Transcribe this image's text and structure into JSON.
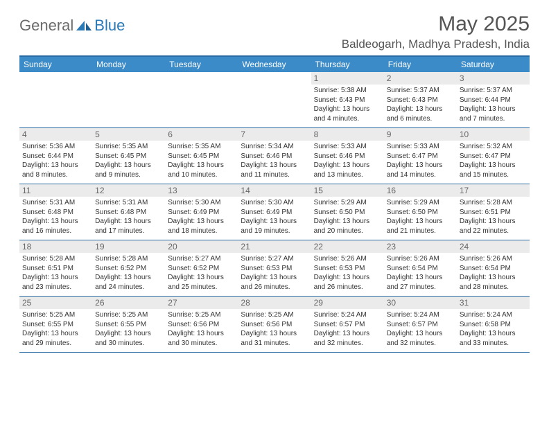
{
  "logo": {
    "general": "General",
    "blue": "Blue"
  },
  "title": "May 2025",
  "location": "Baldeogarh, Madhya Pradesh, India",
  "colors": {
    "header_bar": "#3b8bc9",
    "header_border": "#2a6aa3",
    "daynum_bg": "#ebebeb",
    "text": "#333333",
    "logo_gray": "#6b6b6b",
    "logo_blue": "#2a7ab8"
  },
  "weekdays": [
    "Sunday",
    "Monday",
    "Tuesday",
    "Wednesday",
    "Thursday",
    "Friday",
    "Saturday"
  ],
  "weeks": [
    [
      {
        "day": "",
        "sunrise": "",
        "sunset": "",
        "daylight": ""
      },
      {
        "day": "",
        "sunrise": "",
        "sunset": "",
        "daylight": ""
      },
      {
        "day": "",
        "sunrise": "",
        "sunset": "",
        "daylight": ""
      },
      {
        "day": "",
        "sunrise": "",
        "sunset": "",
        "daylight": ""
      },
      {
        "day": "1",
        "sunrise": "5:38 AM",
        "sunset": "6:43 PM",
        "daylight": "13 hours and 4 minutes."
      },
      {
        "day": "2",
        "sunrise": "5:37 AM",
        "sunset": "6:43 PM",
        "daylight": "13 hours and 6 minutes."
      },
      {
        "day": "3",
        "sunrise": "5:37 AM",
        "sunset": "6:44 PM",
        "daylight": "13 hours and 7 minutes."
      }
    ],
    [
      {
        "day": "4",
        "sunrise": "5:36 AM",
        "sunset": "6:44 PM",
        "daylight": "13 hours and 8 minutes."
      },
      {
        "day": "5",
        "sunrise": "5:35 AM",
        "sunset": "6:45 PM",
        "daylight": "13 hours and 9 minutes."
      },
      {
        "day": "6",
        "sunrise": "5:35 AM",
        "sunset": "6:45 PM",
        "daylight": "13 hours and 10 minutes."
      },
      {
        "day": "7",
        "sunrise": "5:34 AM",
        "sunset": "6:46 PM",
        "daylight": "13 hours and 11 minutes."
      },
      {
        "day": "8",
        "sunrise": "5:33 AM",
        "sunset": "6:46 PM",
        "daylight": "13 hours and 13 minutes."
      },
      {
        "day": "9",
        "sunrise": "5:33 AM",
        "sunset": "6:47 PM",
        "daylight": "13 hours and 14 minutes."
      },
      {
        "day": "10",
        "sunrise": "5:32 AM",
        "sunset": "6:47 PM",
        "daylight": "13 hours and 15 minutes."
      }
    ],
    [
      {
        "day": "11",
        "sunrise": "5:31 AM",
        "sunset": "6:48 PM",
        "daylight": "13 hours and 16 minutes."
      },
      {
        "day": "12",
        "sunrise": "5:31 AM",
        "sunset": "6:48 PM",
        "daylight": "13 hours and 17 minutes."
      },
      {
        "day": "13",
        "sunrise": "5:30 AM",
        "sunset": "6:49 PM",
        "daylight": "13 hours and 18 minutes."
      },
      {
        "day": "14",
        "sunrise": "5:30 AM",
        "sunset": "6:49 PM",
        "daylight": "13 hours and 19 minutes."
      },
      {
        "day": "15",
        "sunrise": "5:29 AM",
        "sunset": "6:50 PM",
        "daylight": "13 hours and 20 minutes."
      },
      {
        "day": "16",
        "sunrise": "5:29 AM",
        "sunset": "6:50 PM",
        "daylight": "13 hours and 21 minutes."
      },
      {
        "day": "17",
        "sunrise": "5:28 AM",
        "sunset": "6:51 PM",
        "daylight": "13 hours and 22 minutes."
      }
    ],
    [
      {
        "day": "18",
        "sunrise": "5:28 AM",
        "sunset": "6:51 PM",
        "daylight": "13 hours and 23 minutes."
      },
      {
        "day": "19",
        "sunrise": "5:28 AM",
        "sunset": "6:52 PM",
        "daylight": "13 hours and 24 minutes."
      },
      {
        "day": "20",
        "sunrise": "5:27 AM",
        "sunset": "6:52 PM",
        "daylight": "13 hours and 25 minutes."
      },
      {
        "day": "21",
        "sunrise": "5:27 AM",
        "sunset": "6:53 PM",
        "daylight": "13 hours and 26 minutes."
      },
      {
        "day": "22",
        "sunrise": "5:26 AM",
        "sunset": "6:53 PM",
        "daylight": "13 hours and 26 minutes."
      },
      {
        "day": "23",
        "sunrise": "5:26 AM",
        "sunset": "6:54 PM",
        "daylight": "13 hours and 27 minutes."
      },
      {
        "day": "24",
        "sunrise": "5:26 AM",
        "sunset": "6:54 PM",
        "daylight": "13 hours and 28 minutes."
      }
    ],
    [
      {
        "day": "25",
        "sunrise": "5:25 AM",
        "sunset": "6:55 PM",
        "daylight": "13 hours and 29 minutes."
      },
      {
        "day": "26",
        "sunrise": "5:25 AM",
        "sunset": "6:55 PM",
        "daylight": "13 hours and 30 minutes."
      },
      {
        "day": "27",
        "sunrise": "5:25 AM",
        "sunset": "6:56 PM",
        "daylight": "13 hours and 30 minutes."
      },
      {
        "day": "28",
        "sunrise": "5:25 AM",
        "sunset": "6:56 PM",
        "daylight": "13 hours and 31 minutes."
      },
      {
        "day": "29",
        "sunrise": "5:24 AM",
        "sunset": "6:57 PM",
        "daylight": "13 hours and 32 minutes."
      },
      {
        "day": "30",
        "sunrise": "5:24 AM",
        "sunset": "6:57 PM",
        "daylight": "13 hours and 32 minutes."
      },
      {
        "day": "31",
        "sunrise": "5:24 AM",
        "sunset": "6:58 PM",
        "daylight": "13 hours and 33 minutes."
      }
    ]
  ],
  "labels": {
    "sunrise": "Sunrise:",
    "sunset": "Sunset:",
    "daylight": "Daylight:"
  }
}
